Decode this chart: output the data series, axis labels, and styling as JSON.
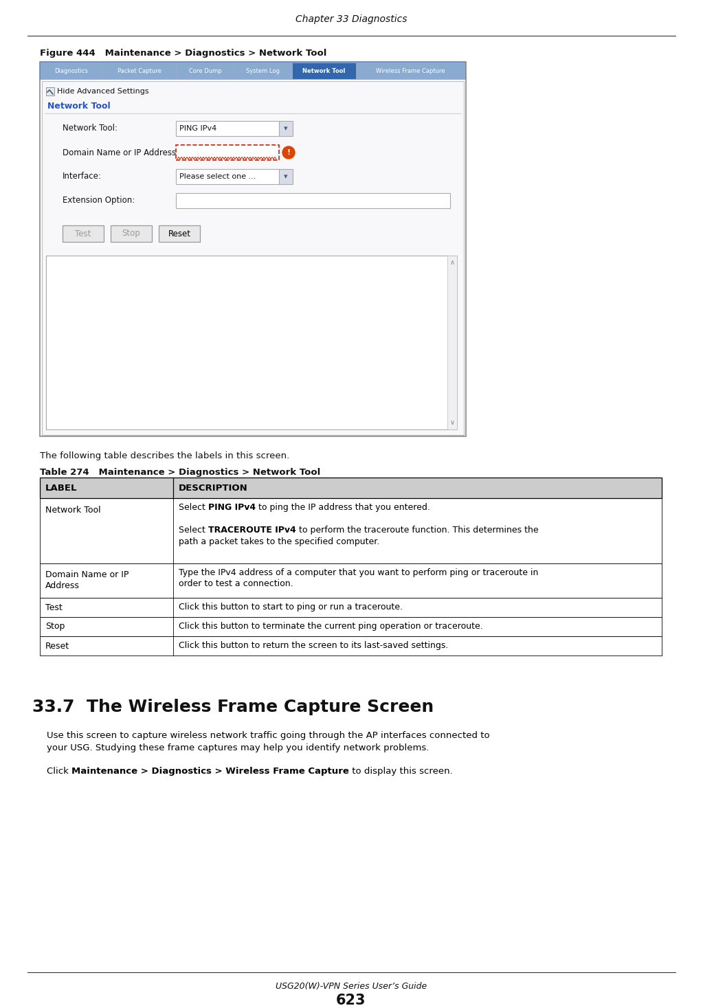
{
  "page_title": "Chapter 33 Diagnostics",
  "footer_text": "USG20(W)-VPN Series User’s Guide",
  "page_number": "623",
  "figure_label": "Figure 444   Maintenance > Diagnostics > Network Tool",
  "tab_labels": [
    "Diagnostics",
    "Packet Capture",
    "Core Dump",
    "System Log",
    "Network Tool",
    "Wireless Frame Capture"
  ],
  "active_tab": "Network Tool",
  "ui_fields": [
    {
      "label": "Network Tool:",
      "value": "PING IPv4",
      "type": "dropdown",
      "wide": false
    },
    {
      "label": "Domain Name or IP Address:",
      "value": "",
      "type": "text_error",
      "wide": false
    },
    {
      "label": "Interface:",
      "value": "Please select one ...",
      "type": "dropdown",
      "wide": false
    },
    {
      "label": "Extension Option:",
      "value": "",
      "type": "text",
      "wide": true
    }
  ],
  "ui_buttons": [
    {
      "label": "Test",
      "enabled": false
    },
    {
      "label": "Stop",
      "enabled": false
    },
    {
      "label": "Reset",
      "enabled": true
    }
  ],
  "body_text": "The following table describes the labels in this screen.",
  "table_title": "Table 274   Maintenance > Diagnostics > Network Tool",
  "table_header_label": "LABEL",
  "table_header_desc": "DESCRIPTION",
  "table_rows": [
    {
      "label": "Network Tool",
      "line1_pre": "Select ",
      "line1_bold": "PING IPv4",
      "line1_post": " to ping the IP address that you entered.",
      "line2_pre": "Select ",
      "line2_bold": "TRACEROUTE IPv4",
      "line2_post": " to perform the traceroute function. This determines the",
      "line3": "path a packet takes to the specified computer.",
      "type": "two_para"
    },
    {
      "label": "Domain Name or IP\nAddress",
      "line1": "Type the IPv4 address of a computer that you want to perform ping or traceroute in",
      "line2": "order to test a connection.",
      "type": "two_line"
    },
    {
      "label": "Test",
      "line1": "Click this button to start to ping or run a traceroute.",
      "type": "one_line"
    },
    {
      "label": "Stop",
      "line1": "Click this button to terminate the current ping operation or traceroute.",
      "type": "one_line"
    },
    {
      "label": "Reset",
      "line1": "Click this button to return the screen to its last-saved settings.",
      "type": "one_line"
    }
  ],
  "section_heading": "33.7  The Wireless Frame Capture Screen",
  "section_para1_line1": "Use this screen to capture wireless network traffic going through the AP interfaces connected to",
  "section_para1_line2": "your USG. Studying these frame captures may help you identify network problems.",
  "section_para2_pre": "Click ",
  "section_para2_bold": "Maintenance > Diagnostics > Wireless Frame Capture",
  "section_para2_post": " to display this screen.",
  "bg_color": "#ffffff",
  "tab_bar_color": "#6688bb",
  "tab_active_color": "#3366aa",
  "tab_inactive_color": "#8aaacf",
  "tab_text_color": "#ffffff",
  "panel_bg": "#f8f8fa",
  "panel_border": "#bbbbcc",
  "field_border": "#aaaaaa",
  "field_bg": "#ffffff",
  "error_border": "#cc2200",
  "error_icon_color": "#dd4400",
  "btn_border": "#999999",
  "btn_disabled_text": "#999999",
  "btn_enabled_text": "#000000",
  "btn_bg": "#e8e8e8",
  "output_border": "#aaaaaa",
  "nt_label_color": "#2255cc",
  "tbl_header_bg": "#cccccc",
  "tbl_border": "#000000",
  "tbl_col1_pct": 0.215
}
